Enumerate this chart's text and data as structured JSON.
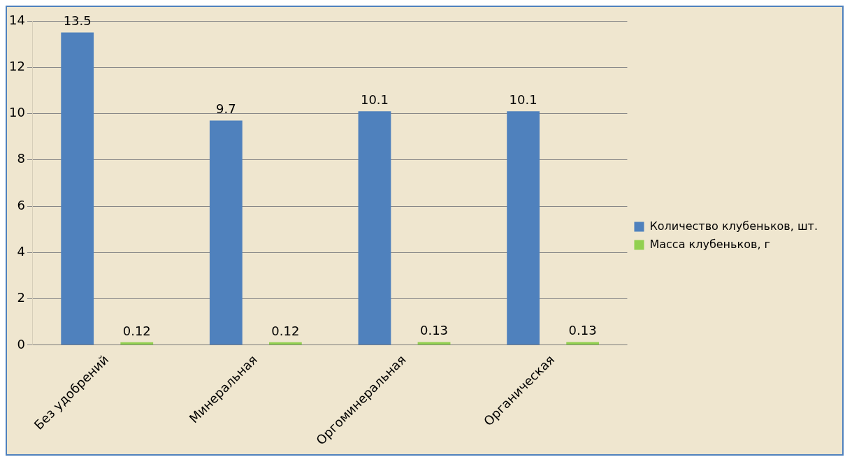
{
  "chart_data": {
    "type": "bar",
    "categories": [
      "Без удобрений",
      "Минеральная",
      "Оргоминеральная",
      "Органическая"
    ],
    "series": [
      {
        "name": "Количество клубеньков, шт.",
        "color": "#4f81bd",
        "values": [
          13.5,
          9.7,
          10.1,
          10.1
        ]
      },
      {
        "name": "Масса клубеньков, г",
        "color": "#92d050",
        "values": [
          0.12,
          0.12,
          0.13,
          0.13
        ]
      }
    ],
    "ylim": [
      0,
      14
    ],
    "yticks": [
      0,
      2,
      4,
      6,
      8,
      10,
      12,
      14
    ],
    "grid": "y",
    "legend": "right",
    "data_labels": true
  }
}
